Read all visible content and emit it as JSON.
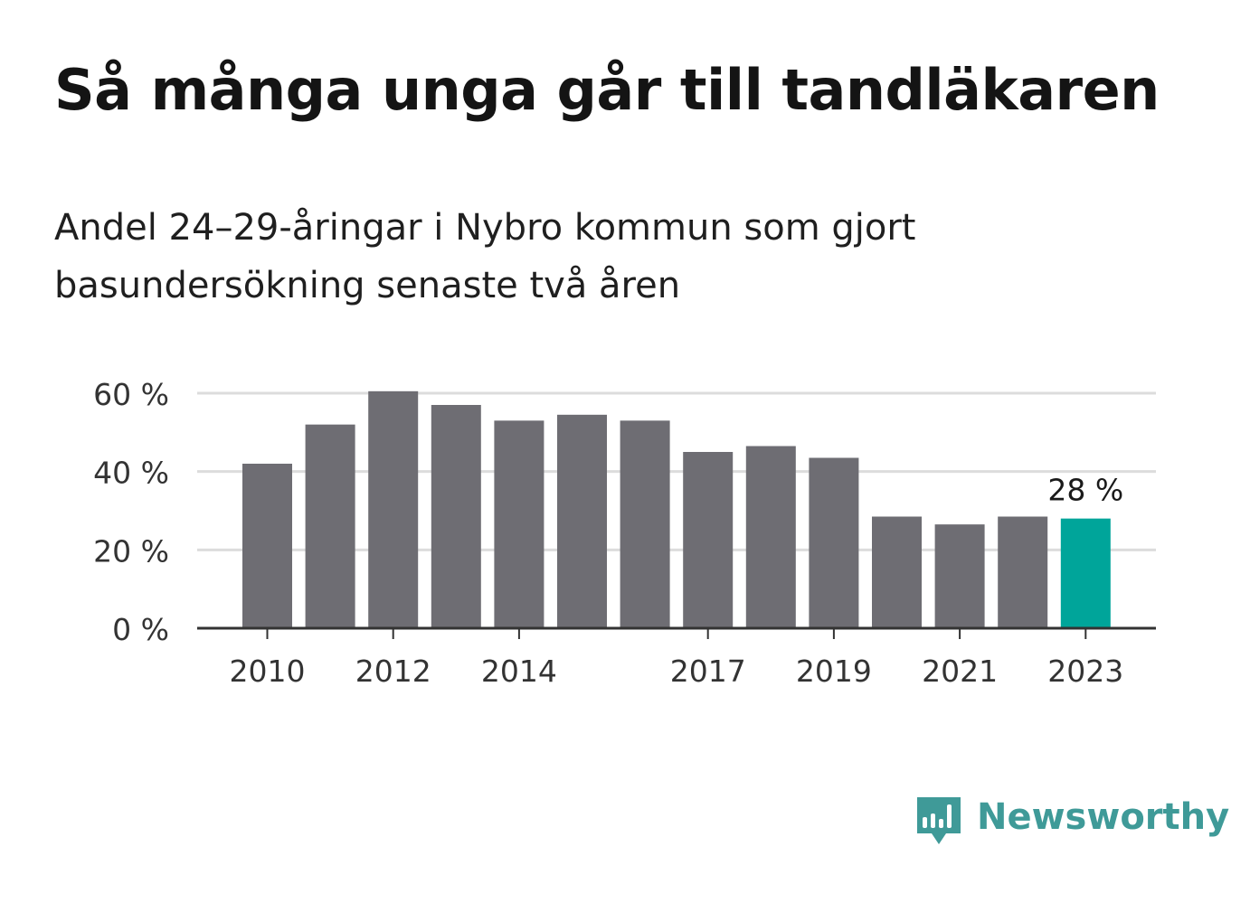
{
  "title": "Så många unga går till tandläkaren",
  "subtitle": "Andel 24–29-åringar i Nybro kommun som gjort basundersökning senaste två åren",
  "brand": {
    "name": "Newsworthy",
    "icon": "newsworthy-logo-icon",
    "color": "#3f9a98"
  },
  "chart_data": {
    "type": "bar",
    "categories": [
      "2010",
      "2011",
      "2012",
      "2013",
      "2014",
      "2015",
      "2016",
      "2017",
      "2018",
      "2019",
      "2020",
      "2021",
      "2022",
      "2023"
    ],
    "values": [
      42,
      52,
      60.5,
      57,
      53,
      54.5,
      53,
      45,
      46.5,
      43.5,
      28.5,
      26.5,
      28.5,
      28
    ],
    "x_tick_labels": [
      "2010",
      "2012",
      "2014",
      "2017",
      "2019",
      "2021",
      "2023"
    ],
    "y_ticks": [
      0,
      20,
      40,
      60
    ],
    "y_tick_labels": [
      "0 %",
      "20 %",
      "40 %",
      "60 %"
    ],
    "ylim": [
      0,
      60
    ],
    "highlight_category": "2023",
    "highlight_label": "28 %",
    "bar_color": "#6e6d73",
    "highlight_color": "#00a59a",
    "grid_color": "#dcdcdc",
    "axis_color": "#333333",
    "grid": true,
    "xlabel": "",
    "ylabel": ""
  }
}
